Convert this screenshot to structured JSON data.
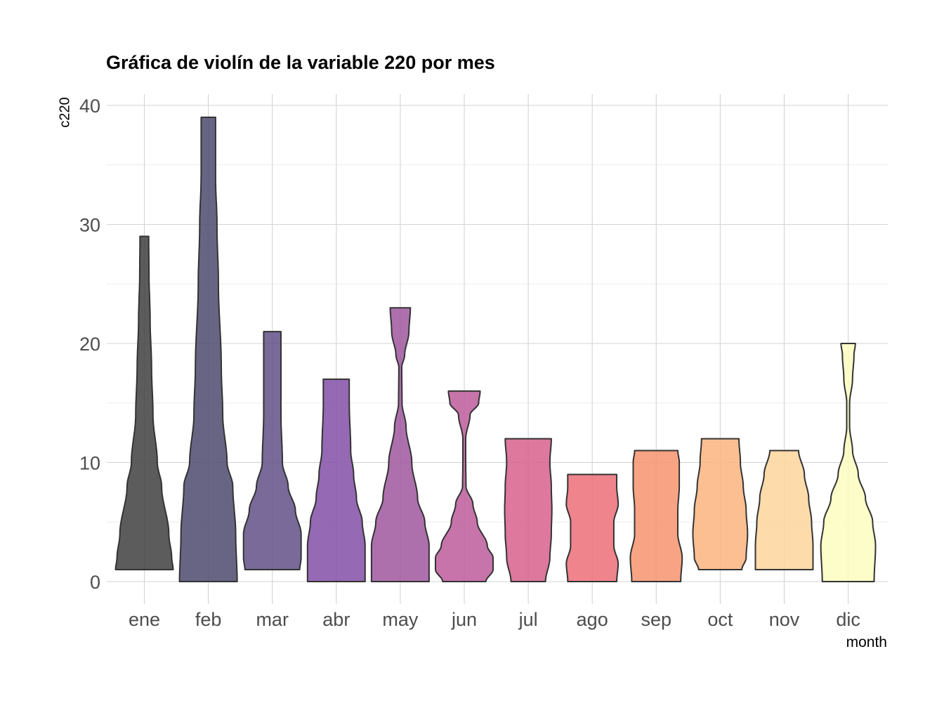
{
  "chart_data": {
    "type": "violin",
    "title": "Gráfica de violín de la variable 220 por mes",
    "xlabel": "month",
    "ylabel": "c220",
    "ylim": [
      0,
      41
    ],
    "yticks": [
      0,
      10,
      20,
      30,
      40
    ],
    "grid": true,
    "legend": "none",
    "categories": [
      "ene",
      "feb",
      "mar",
      "abr",
      "may",
      "jun",
      "jul",
      "ago",
      "sep",
      "oct",
      "nov",
      "dic"
    ],
    "series": [
      {
        "category": "ene",
        "color": "#404040",
        "profile": [
          [
            1,
            1.0
          ],
          [
            2,
            0.95
          ],
          [
            4,
            0.85
          ],
          [
            8,
            0.6
          ],
          [
            10,
            0.45
          ],
          [
            14,
            0.3
          ],
          [
            18,
            0.25
          ],
          [
            22,
            0.2
          ],
          [
            26,
            0.16
          ],
          [
            29,
            0.15
          ]
        ]
      },
      {
        "category": "feb",
        "color": "#4e4a6e",
        "profile": [
          [
            0,
            1.0
          ],
          [
            4,
            0.95
          ],
          [
            8,
            0.85
          ],
          [
            10,
            0.65
          ],
          [
            14,
            0.5
          ],
          [
            18,
            0.45
          ],
          [
            25,
            0.35
          ],
          [
            30,
            0.3
          ],
          [
            34,
            0.25
          ],
          [
            39,
            0.25
          ]
        ]
      },
      {
        "category": "mar",
        "color": "#625088",
        "profile": [
          [
            1,
            0.95
          ],
          [
            2,
            1.0
          ],
          [
            4,
            1.0
          ],
          [
            6,
            0.8
          ],
          [
            8,
            0.55
          ],
          [
            10,
            0.35
          ],
          [
            14,
            0.3
          ],
          [
            18,
            0.3
          ],
          [
            21,
            0.3
          ]
        ]
      },
      {
        "category": "abr",
        "color": "#834fa6",
        "profile": [
          [
            0,
            1.0
          ],
          [
            3,
            1.0
          ],
          [
            5,
            0.9
          ],
          [
            7,
            0.7
          ],
          [
            9,
            0.6
          ],
          [
            11,
            0.5
          ],
          [
            15,
            0.45
          ],
          [
            17,
            0.45
          ]
        ]
      },
      {
        "category": "may",
        "color": "#9f579f",
        "profile": [
          [
            0,
            1.0
          ],
          [
            3,
            1.0
          ],
          [
            5,
            0.85
          ],
          [
            7,
            0.6
          ],
          [
            10,
            0.4
          ],
          [
            13,
            0.2
          ],
          [
            15,
            0.06
          ],
          [
            18,
            0.05
          ],
          [
            19,
            0.15
          ],
          [
            21,
            0.3
          ],
          [
            23,
            0.35
          ]
        ]
      },
      {
        "category": "jun",
        "color": "#bd5c9c",
        "profile": [
          [
            0,
            0.75
          ],
          [
            1,
            1.0
          ],
          [
            2,
            1.0
          ],
          [
            3,
            0.8
          ],
          [
            5,
            0.45
          ],
          [
            6.5,
            0.3
          ],
          [
            8,
            0.06
          ],
          [
            10,
            0.05
          ],
          [
            12,
            0.05
          ],
          [
            14,
            0.2
          ],
          [
            15,
            0.5
          ],
          [
            16,
            0.55
          ]
        ]
      },
      {
        "category": "jul",
        "color": "#d8608c",
        "profile": [
          [
            0,
            0.6
          ],
          [
            2,
            0.75
          ],
          [
            4,
            0.8
          ],
          [
            6,
            0.82
          ],
          [
            8,
            0.8
          ],
          [
            10,
            0.75
          ],
          [
            12,
            0.8
          ]
        ]
      },
      {
        "category": "ago",
        "color": "#ec6f78",
        "profile": [
          [
            0,
            0.85
          ],
          [
            1.5,
            0.9
          ],
          [
            3,
            0.75
          ],
          [
            5,
            0.75
          ],
          [
            6.5,
            0.9
          ],
          [
            8,
            0.85
          ],
          [
            9,
            0.85
          ]
        ]
      },
      {
        "category": "sep",
        "color": "#f7946e",
        "profile": [
          [
            0,
            0.85
          ],
          [
            2,
            0.9
          ],
          [
            4,
            0.75
          ],
          [
            6,
            0.75
          ],
          [
            8,
            0.8
          ],
          [
            10,
            0.8
          ],
          [
            11,
            0.75
          ]
        ]
      },
      {
        "category": "oct",
        "color": "#fcb47f",
        "profile": [
          [
            1,
            0.75
          ],
          [
            2,
            0.9
          ],
          [
            4,
            0.95
          ],
          [
            6,
            0.9
          ],
          [
            8,
            0.8
          ],
          [
            10,
            0.7
          ],
          [
            12,
            0.65
          ]
        ]
      },
      {
        "category": "nov",
        "color": "#fdd59c",
        "profile": [
          [
            1,
            1.0
          ],
          [
            3,
            1.0
          ],
          [
            5,
            0.95
          ],
          [
            7,
            0.85
          ],
          [
            9,
            0.7
          ],
          [
            11,
            0.5
          ]
        ]
      },
      {
        "category": "dic",
        "color": "#fcfdbf",
        "profile": [
          [
            0,
            0.9
          ],
          [
            3,
            0.95
          ],
          [
            5,
            0.85
          ],
          [
            7,
            0.6
          ],
          [
            9,
            0.35
          ],
          [
            11,
            0.15
          ],
          [
            13,
            0.05
          ],
          [
            15,
            0.05
          ],
          [
            17,
            0.15
          ],
          [
            19,
            0.2
          ],
          [
            20,
            0.25
          ]
        ]
      }
    ]
  }
}
